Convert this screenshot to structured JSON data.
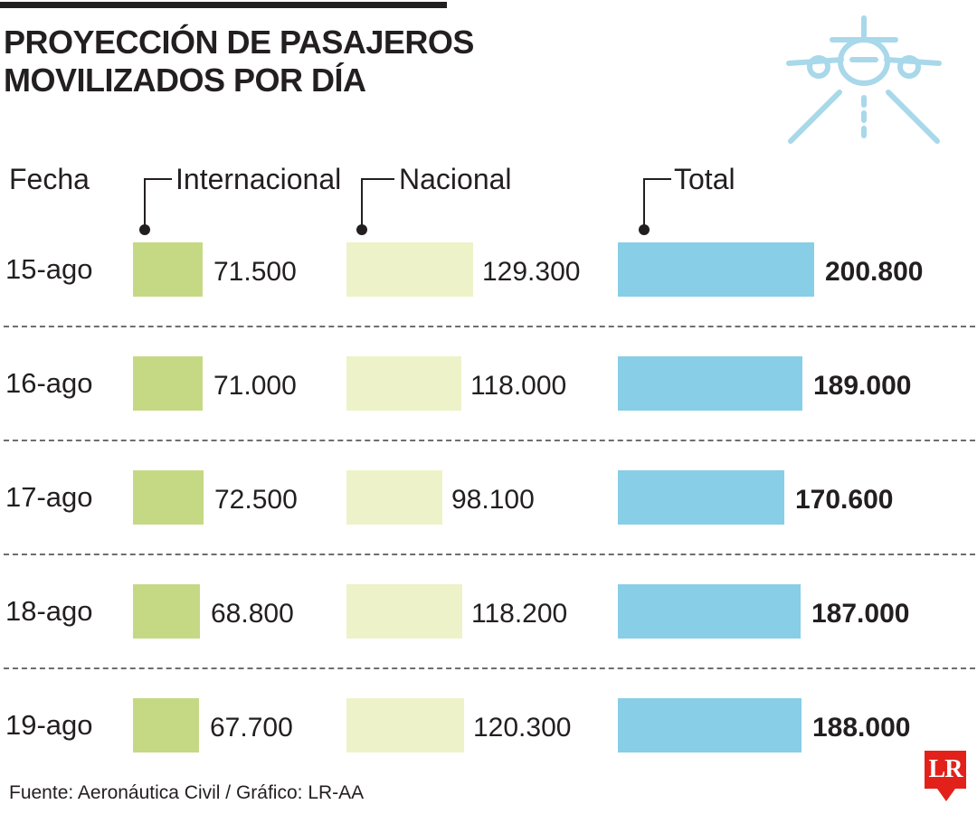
{
  "title": [
    "PROYECCIÓN DE PASAJEROS",
    "MOVILIZADOS POR DÍA"
  ],
  "source": "Fuente: Aeronáutica Civil / Gráfico: LR-AA",
  "logo": "LR",
  "icon": "airplane-icon",
  "colors": {
    "internacional": "#c5d985",
    "nacional": "#eef2c8",
    "total": "#87cee6",
    "logo": "#e2221a"
  },
  "chart_data": {
    "type": "bar",
    "orientation": "horizontal",
    "date_header": "Fecha",
    "categories": [
      "15-ago",
      "16-ago",
      "17-ago",
      "18-ago",
      "19-ago"
    ],
    "series": [
      {
        "name": "Internacional",
        "values": [
          71500,
          71000,
          72500,
          68800,
          67700
        ],
        "labels": [
          "71.500",
          "71.000",
          "72.500",
          "68.800",
          "67.700"
        ]
      },
      {
        "name": "Nacional",
        "values": [
          129300,
          118000,
          98100,
          118200,
          120300
        ],
        "labels": [
          "129.300",
          "118.000",
          "98.100",
          "118.200",
          "120.300"
        ]
      },
      {
        "name": "Total",
        "values": [
          200800,
          189000,
          170600,
          187000,
          188000
        ],
        "labels": [
          "200.800",
          "189.000",
          "170.600",
          "187.000",
          "188.000"
        ]
      }
    ]
  }
}
